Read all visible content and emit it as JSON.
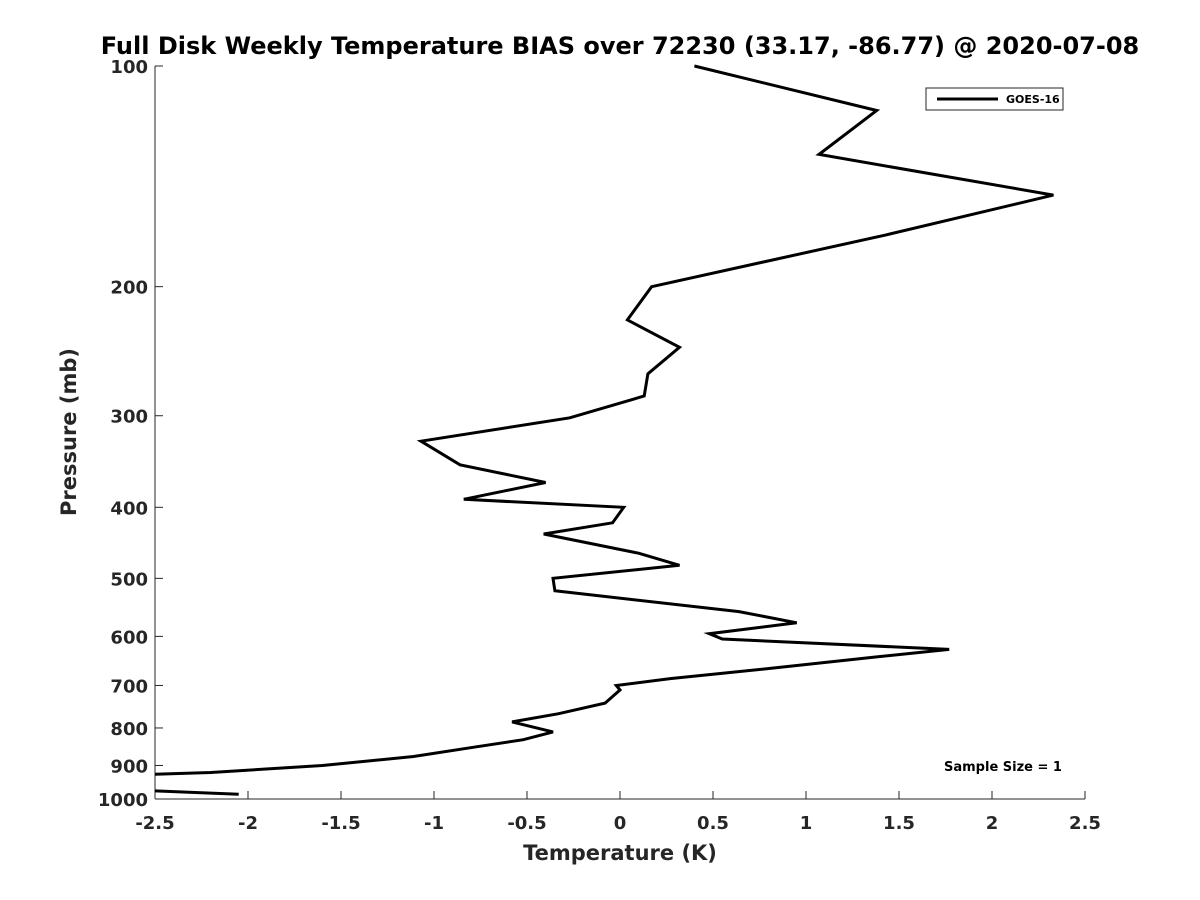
{
  "chart_data": {
    "type": "line",
    "title": "Full Disk Weekly Temperature BIAS over 72230 (33.17, -86.77) @ 2020-07-08",
    "xlabel": "Temperature (K)",
    "ylabel": "Pressure (mb)",
    "xlim": [
      -2.5,
      2.5
    ],
    "ylim": [
      100,
      1000
    ],
    "y_scale": "log",
    "y_reversed": true,
    "grid": false,
    "legend_position": "top-right",
    "x_ticks": [
      "-2.5",
      "-2",
      "-1.5",
      "-1",
      "-0.5",
      "0",
      "0.5",
      "1",
      "1.5",
      "2",
      "2.5"
    ],
    "y_ticks": [
      "100",
      "200",
      "300",
      "400",
      "500",
      "600",
      "700",
      "800",
      "900",
      "1000"
    ],
    "annotation": "Sample Size = 1",
    "series": [
      {
        "name": "GOES-16",
        "color": "#000000",
        "x": [
          0.4,
          1.38,
          1.07,
          2.33,
          1.43,
          0.17,
          0.04,
          0.32,
          0.15,
          0.13,
          -0.27,
          -1.07,
          -0.86,
          -0.4,
          -0.84,
          0.02,
          -0.04,
          -0.41,
          0.1,
          0.32,
          -0.36,
          -0.35,
          0.64,
          0.95,
          0.48,
          0.55,
          1.77,
          1.38,
          0.77,
          0.27,
          -0.02,
          0.0,
          -0.08,
          -0.33,
          -0.58,
          -0.36,
          -0.52,
          -0.79,
          -1.11,
          -1.6,
          -2.2,
          -2.5
        ],
        "y": [
          100,
          115,
          132,
          150,
          170,
          200,
          222,
          242,
          263,
          282,
          302,
          325,
          350,
          370,
          390,
          400,
          420,
          435,
          462,
          480,
          500,
          520,
          555,
          575,
          595,
          605,
          625,
          640,
          665,
          685,
          700,
          710,
          740,
          765,
          785,
          810,
          830,
          850,
          875,
          900,
          920,
          925
        ],
        "tail": {
          "x": [
            -2.5,
            -2.05
          ],
          "y": [
            975,
            985
          ]
        }
      }
    ]
  }
}
